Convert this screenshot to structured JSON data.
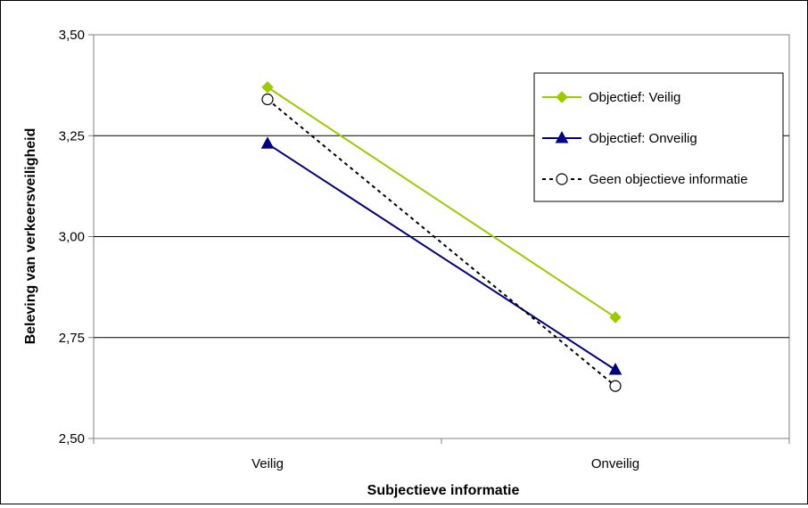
{
  "chart_data": {
    "type": "line",
    "title": "",
    "xlabel": "Subjectieve informatie",
    "ylabel": "Beleving van verkeersveiligheid",
    "categories": [
      "Veilig",
      "Onveilig"
    ],
    "ylim": [
      2.5,
      3.5
    ],
    "yticks": [
      "2,50",
      "2,75",
      "3,00",
      "3,25",
      "3,50"
    ],
    "ytick_values": [
      2.5,
      2.75,
      3.0,
      3.25,
      3.5
    ],
    "grid": "horizontal",
    "legend_position": "top-right",
    "series": [
      {
        "name": "Objectief: Veilig",
        "values": [
          3.37,
          2.8
        ],
        "color": "#99cc00",
        "marker": "diamond",
        "line": "solid"
      },
      {
        "name": "Objectief: Onveilig",
        "values": [
          3.23,
          2.67
        ],
        "color": "#000080",
        "marker": "triangle",
        "line": "solid"
      },
      {
        "name": "Geen objectieve informatie",
        "values": [
          3.34,
          2.63
        ],
        "color": "#000000",
        "marker": "open-circle",
        "line": "dashed"
      }
    ]
  }
}
